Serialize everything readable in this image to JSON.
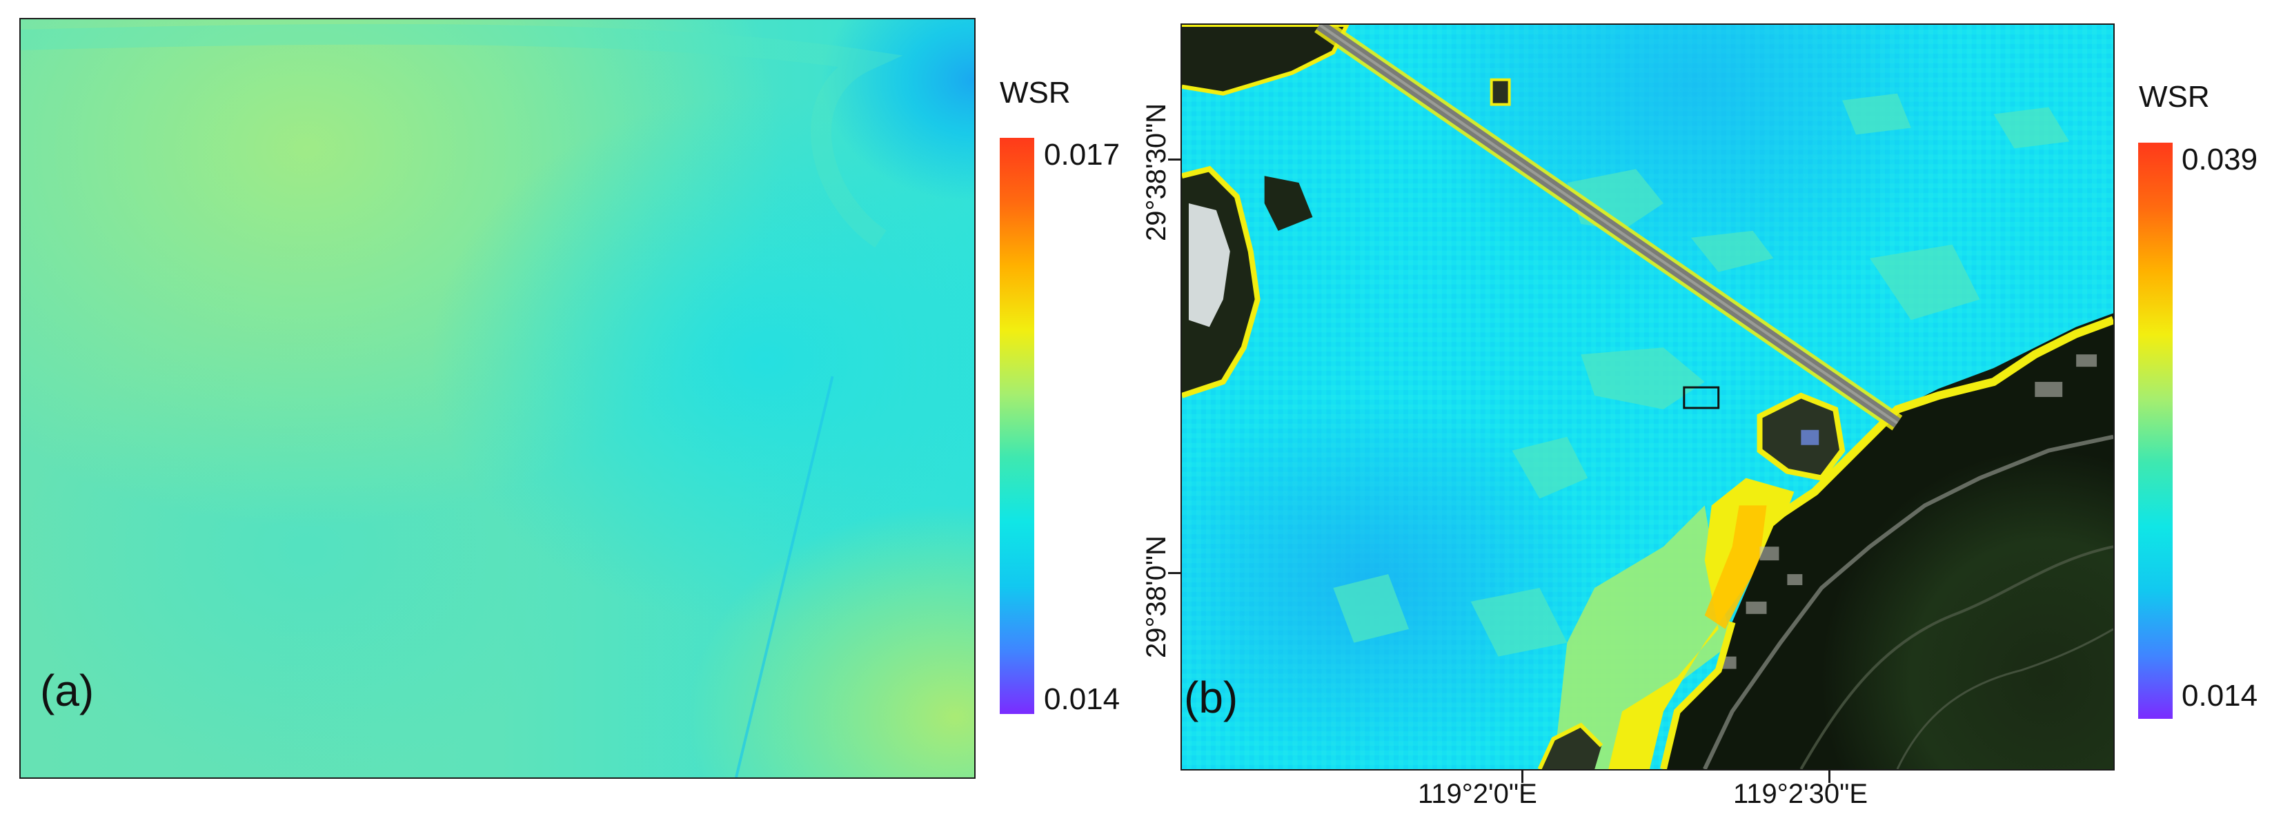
{
  "panels": [
    {
      "label": "(a)",
      "legend": {
        "title": "WSR",
        "max": "0.017",
        "min": "0.014"
      }
    },
    {
      "label": "(b)",
      "legend": {
        "title": "WSR",
        "max": "0.039",
        "min": "0.014"
      },
      "latitude_labels": [
        "29°38'30\"N",
        "29°38'0\"N"
      ],
      "longitude_labels": [
        "119°2'0\"E",
        "119°2'30\"E"
      ]
    }
  ],
  "colormap": [
    "#7a2cff",
    "#3f86ff",
    "#12c8f0",
    "#10e6e6",
    "#3ee8b0",
    "#a6ee6e",
    "#f2ee10",
    "#ffb100",
    "#ff6a10",
    "#ff3a1a"
  ]
}
